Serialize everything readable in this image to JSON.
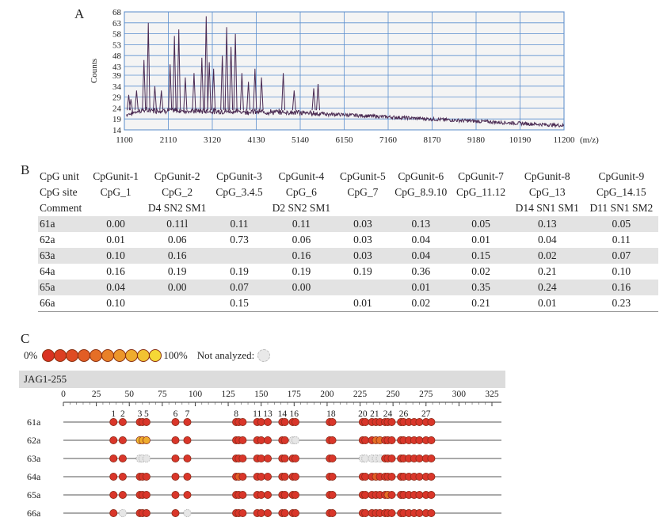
{
  "panels": {
    "a": "A",
    "b": "B",
    "c": "C"
  },
  "spectrum": {
    "ylabel": "Counts",
    "xunit": "(m/z)",
    "yticks": [
      14,
      19,
      24,
      29,
      34,
      39,
      43,
      48,
      53,
      58,
      63,
      68
    ],
    "xticks": [
      1100,
      2110,
      3120,
      4130,
      5140,
      6150,
      7160,
      8170,
      9180,
      10190,
      11200
    ],
    "xlim": [
      1100,
      11200
    ],
    "ylim": [
      14,
      68
    ],
    "peaks": [
      {
        "x": 1200,
        "y": 30
      },
      {
        "x": 1250,
        "y": 28
      },
      {
        "x": 1380,
        "y": 32
      },
      {
        "x": 1550,
        "y": 46
      },
      {
        "x": 1650,
        "y": 63
      },
      {
        "x": 1800,
        "y": 34
      },
      {
        "x": 1950,
        "y": 32
      },
      {
        "x": 2150,
        "y": 44
      },
      {
        "x": 2250,
        "y": 57
      },
      {
        "x": 2350,
        "y": 60
      },
      {
        "x": 2500,
        "y": 38
      },
      {
        "x": 2700,
        "y": 40
      },
      {
        "x": 2880,
        "y": 47
      },
      {
        "x": 2980,
        "y": 66
      },
      {
        "x": 3050,
        "y": 45
      },
      {
        "x": 3150,
        "y": 42
      },
      {
        "x": 3350,
        "y": 48
      },
      {
        "x": 3450,
        "y": 61
      },
      {
        "x": 3550,
        "y": 52
      },
      {
        "x": 3650,
        "y": 58
      },
      {
        "x": 3800,
        "y": 40
      },
      {
        "x": 3950,
        "y": 36
      },
      {
        "x": 4100,
        "y": 42
      },
      {
        "x": 4250,
        "y": 38
      },
      {
        "x": 4750,
        "y": 40
      },
      {
        "x": 5000,
        "y": 32
      },
      {
        "x": 5450,
        "y": 33
      },
      {
        "x": 5550,
        "y": 35
      }
    ]
  },
  "table": {
    "header": [
      "CpG unit",
      "CpGunit-1",
      "CpGunit-2",
      "CpGunit-3",
      "CpGunit-4",
      "CpGunit-5",
      "CpGunit-6",
      "CpGunit-7",
      "CpGunit-8",
      "CpGunit-9"
    ],
    "sites": [
      "CpG site",
      "CpG_1",
      "CpG_2",
      "CpG_3.4.5",
      "CpG_6",
      "CpG_7",
      "CpG_8.9.10",
      "CpG_11.12",
      "CpG_13",
      "CpG_14.15"
    ],
    "comment": [
      "Comment",
      "",
      "D4 SN2 SM1",
      "",
      "D2 SN2 SM1",
      "",
      "",
      "",
      "D14 SN1 SM1",
      "D11 SN1 SM2"
    ],
    "rows": [
      [
        "61a",
        "0.00",
        "0.11l",
        "0.11",
        "0.11",
        "0.03",
        "0.13",
        "0.05",
        "0.13",
        "0.05"
      ],
      [
        "62a",
        "0.01",
        "0.06",
        "0.73",
        "0.06",
        "0.03",
        "0.04",
        "0.01",
        "0.04",
        "0.11"
      ],
      [
        "63a",
        "0.10",
        "0.16",
        "",
        "0.16",
        "0.03",
        "0.04",
        "0.15",
        "0.02",
        "0.07"
      ],
      [
        "64a",
        "0.16",
        "0.19",
        "0.19",
        "0.19",
        "0.19",
        "0.36",
        "0.02",
        "0.21",
        "0.10"
      ],
      [
        "65a",
        "0.04",
        "0.00",
        "0.07",
        "0.00",
        "",
        "0.01",
        "0.35",
        "0.24",
        "0.16"
      ],
      [
        "66a",
        "0.10",
        "",
        "0.15",
        "",
        "0.01",
        "0.02",
        "0.21",
        "0.01",
        "0.23"
      ]
    ]
  },
  "legend": {
    "low": "0%",
    "high": "100%",
    "not_analyzed": "Not analyzed:",
    "colors": [
      "#d93222",
      "#dc3f22",
      "#df4c23",
      "#e25d24",
      "#e56e26",
      "#e98128",
      "#ec962b",
      "#efac2e",
      "#f2c232",
      "#f5d836"
    ]
  },
  "cpg_map": {
    "gene": "JAG1-255",
    "scale_ticks": [
      0,
      25,
      50,
      75,
      100,
      125,
      150,
      175,
      200,
      225,
      250,
      275,
      300,
      325
    ],
    "scale_max": 325,
    "site_positions": [
      38,
      45,
      58,
      60,
      63,
      85,
      94,
      131,
      133,
      136,
      147,
      150,
      155,
      166,
      168,
      174,
      176,
      202,
      204,
      227,
      229,
      234,
      237,
      240,
      244,
      246,
      249,
      256,
      258,
      262,
      266,
      270,
      275,
      279
    ],
    "site_labels": [
      {
        "n": "1",
        "pos": 38
      },
      {
        "n": "2",
        "pos": 45
      },
      {
        "n": "3",
        "pos": 58
      },
      {
        "n": "5",
        "pos": 63
      },
      {
        "n": "6",
        "pos": 85
      },
      {
        "n": "7",
        "pos": 94
      },
      {
        "n": "8",
        "pos": 131
      },
      {
        "n": "11",
        "pos": 147
      },
      {
        "n": "13",
        "pos": 155
      },
      {
        "n": "14",
        "pos": 166
      },
      {
        "n": "16",
        "pos": 175
      },
      {
        "n": "18",
        "pos": 203
      },
      {
        "n": "20",
        "pos": 227
      },
      {
        "n": "21",
        "pos": 236
      },
      {
        "n": "24",
        "pos": 246
      },
      {
        "n": "26",
        "pos": 258
      },
      {
        "n": "27",
        "pos": 275
      }
    ],
    "samples": [
      "61a",
      "62a",
      "63a",
      "64a",
      "65a",
      "66a"
    ],
    "missing": {
      "62a": [
        174,
        176
      ],
      "63a": [
        58,
        60,
        63,
        227,
        229,
        234,
        237,
        240
      ],
      "66a": [
        45,
        94
      ]
    },
    "partial": {
      "62a": [
        {
          "pos": 58,
          "c": "#f2c232"
        },
        {
          "pos": 60,
          "c": "#efac2e"
        },
        {
          "pos": 63,
          "c": "#efac2e"
        },
        {
          "pos": 237,
          "c": "#e56e26"
        },
        {
          "pos": 240,
          "c": "#e56e26"
        }
      ],
      "64a": [
        {
          "pos": 133,
          "c": "#e25d24"
        },
        {
          "pos": 237,
          "c": "#e25d24"
        }
      ],
      "65a": [
        {
          "pos": 246,
          "c": "#e56e26"
        }
      ]
    }
  }
}
